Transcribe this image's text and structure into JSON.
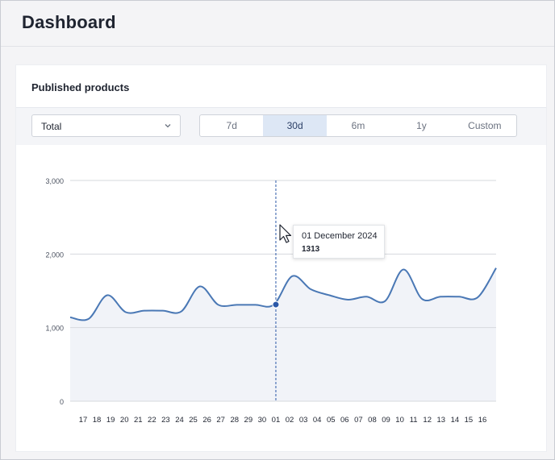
{
  "page": {
    "title": "Dashboard"
  },
  "card": {
    "title": "Published products"
  },
  "filter": {
    "selected": "Total"
  },
  "ranges": [
    {
      "label": "7d",
      "active": false
    },
    {
      "label": "30d",
      "active": true
    },
    {
      "label": "6m",
      "active": false
    },
    {
      "label": "1y",
      "active": false
    },
    {
      "label": "Custom",
      "active": false
    }
  ],
  "tooltip": {
    "date": "01 December 2024",
    "value": "1313"
  },
  "colors": {
    "line": "#4a78b5",
    "fill": "#f1f3f8",
    "marker": "#2b58a8",
    "active_range": "#dde7f5"
  },
  "chart_data": {
    "type": "area",
    "y_ticks": [
      "3,000",
      "2,000",
      "1,000",
      "0"
    ],
    "ylim": [
      0,
      3000
    ],
    "grid": true,
    "x_labels": [
      "17",
      "18",
      "19",
      "20",
      "21",
      "22",
      "23",
      "24",
      "25",
      "26",
      "27",
      "28",
      "29",
      "30",
      "01",
      "02",
      "03",
      "04",
      "05",
      "06",
      "07",
      "08",
      "09",
      "10",
      "11",
      "12",
      "13",
      "14",
      "15",
      "16"
    ],
    "values": [
      1140,
      1120,
      1440,
      1210,
      1230,
      1230,
      1220,
      1560,
      1310,
      1310,
      1310,
      1313,
      1700,
      1520,
      1440,
      1380,
      1420,
      1360,
      1790,
      1390,
      1420,
      1420,
      1410,
      1810
    ],
    "highlight": {
      "x": "01",
      "value": 1313
    }
  }
}
